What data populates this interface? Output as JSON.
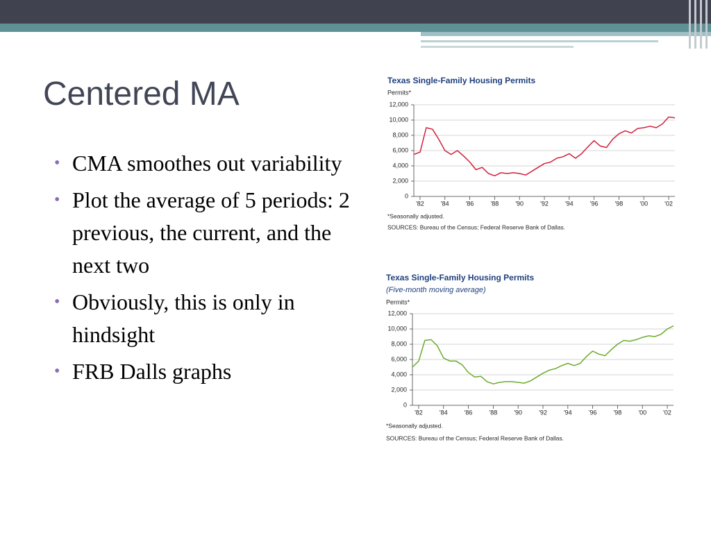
{
  "slide": {
    "title": "Centered MA",
    "bullets": [
      "CMA smoothes out variability",
      "Plot the average of 5 periods: 2 previous, the current, and the next two",
      "Obviously, this is only in hindsight",
      "FRB Dalls graphs"
    ]
  },
  "chart_data": [
    {
      "type": "line",
      "title": "Texas Single-Family Housing Permits",
      "y_label": "Permits*",
      "color": "#d21f3c",
      "grid": true,
      "notes": [
        "*Seasonally adjusted.",
        "SOURCES: Bureau of the Census; Federal Reserve Bank of Dallas."
      ],
      "x": [
        1981.5,
        1982,
        1982.5,
        1983,
        1983.5,
        1984,
        1984.5,
        1985,
        1985.5,
        1986,
        1986.5,
        1987,
        1987.5,
        1988,
        1988.5,
        1989,
        1989.5,
        1990,
        1990.5,
        1991,
        1991.5,
        1992,
        1992.5,
        1993,
        1993.5,
        1994,
        1994.5,
        1995,
        1995.5,
        1996,
        1996.5,
        1997,
        1997.5,
        1998,
        1998.5,
        1999,
        1999.5,
        2000,
        2000.5,
        2001,
        2001.5,
        2002,
        2002.5
      ],
      "values": [
        5500,
        5800,
        9000,
        8800,
        7500,
        6000,
        5500,
        6000,
        5300,
        4500,
        3500,
        3800,
        3000,
        2700,
        3100,
        3000,
        3100,
        3000,
        2800,
        3300,
        3800,
        4300,
        4500,
        5000,
        5200,
        5600,
        5000,
        5600,
        6500,
        7300,
        6600,
        6400,
        7500,
        8200,
        8600,
        8300,
        8900,
        9000,
        9200,
        9000,
        9500,
        10400,
        10300
      ],
      "xlim": [
        1981.5,
        2002.5
      ],
      "xticks": [
        {
          "value": 1982,
          "label": "'82"
        },
        {
          "value": 1984,
          "label": "'84"
        },
        {
          "value": 1986,
          "label": "'86"
        },
        {
          "value": 1988,
          "label": "'88"
        },
        {
          "value": 1990,
          "label": "'90"
        },
        {
          "value": 1992,
          "label": "'92"
        },
        {
          "value": 1994,
          "label": "'94"
        },
        {
          "value": 1996,
          "label": "'96"
        },
        {
          "value": 1998,
          "label": "'98"
        },
        {
          "value": 2000,
          "label": "'00"
        },
        {
          "value": 2002,
          "label": "'02"
        }
      ],
      "ylim": [
        0,
        12000
      ],
      "yticks": [
        0,
        {
          "value": 2000,
          "label": "2,000"
        },
        {
          "value": 4000,
          "label": "4,000"
        },
        {
          "value": 6000,
          "label": "6,000"
        },
        {
          "value": 8000,
          "label": "8,000"
        },
        {
          "value": 10000,
          "label": "10,000"
        },
        {
          "value": 12000,
          "label": "12,000"
        }
      ]
    },
    {
      "type": "line",
      "title": "Texas Single-Family Housing Permits",
      "subtitle": "(Five-month moving average)",
      "y_label": "Permits*",
      "color": "#6aab2b",
      "grid": true,
      "notes": [
        "*Seasonally adjusted.",
        "SOURCES: Bureau of the Census; Federal Reserve Bank of Dallas."
      ],
      "x": [
        1981.5,
        1982,
        1982.5,
        1983,
        1983.5,
        1984,
        1984.5,
        1985,
        1985.5,
        1986,
        1986.5,
        1987,
        1987.5,
        1988,
        1988.5,
        1989,
        1989.5,
        1990,
        1990.5,
        1991,
        1991.5,
        1992,
        1992.5,
        1993,
        1993.5,
        1994,
        1994.5,
        1995,
        1995.5,
        1996,
        1996.5,
        1997,
        1997.5,
        1998,
        1998.5,
        1999,
        1999.5,
        2000,
        2000.5,
        2001,
        2001.5,
        2002,
        2002.5
      ],
      "values": [
        5000,
        5800,
        8500,
        8600,
        7800,
        6200,
        5800,
        5800,
        5300,
        4300,
        3700,
        3800,
        3100,
        2800,
        3000,
        3100,
        3100,
        3000,
        2900,
        3200,
        3700,
        4200,
        4600,
        4800,
        5200,
        5500,
        5200,
        5500,
        6400,
        7100,
        6700,
        6500,
        7300,
        8000,
        8500,
        8400,
        8600,
        8900,
        9100,
        9000,
        9300,
        10000,
        10400
      ],
      "xlim": [
        1981.5,
        2002.5
      ],
      "xticks": [
        {
          "value": 1982,
          "label": "'82"
        },
        {
          "value": 1984,
          "label": "'84"
        },
        {
          "value": 1986,
          "label": "'86"
        },
        {
          "value": 1988,
          "label": "'88"
        },
        {
          "value": 1990,
          "label": "'90"
        },
        {
          "value": 1992,
          "label": "'92"
        },
        {
          "value": 1994,
          "label": "'94"
        },
        {
          "value": 1996,
          "label": "'96"
        },
        {
          "value": 1998,
          "label": "'98"
        },
        {
          "value": 2000,
          "label": "'00"
        },
        {
          "value": 2002,
          "label": "'02"
        }
      ],
      "ylim": [
        0,
        12000
      ],
      "yticks": [
        0,
        {
          "value": 2000,
          "label": "2,000"
        },
        {
          "value": 4000,
          "label": "4,000"
        },
        {
          "value": 6000,
          "label": "6,000"
        },
        {
          "value": 8000,
          "label": "8,000"
        },
        {
          "value": 10000,
          "label": "10,000"
        },
        {
          "value": 12000,
          "label": "12,000"
        }
      ]
    }
  ]
}
